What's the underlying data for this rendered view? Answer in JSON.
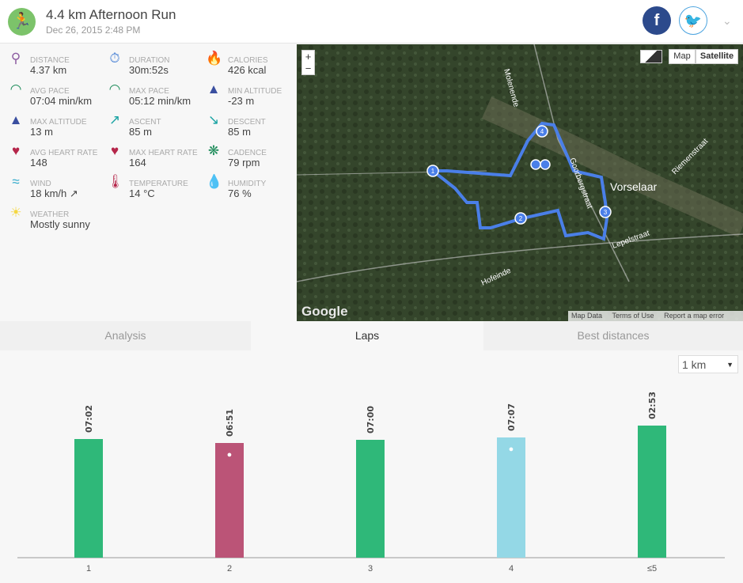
{
  "header": {
    "title": "4.4 km Afternoon Run",
    "date": "Dec 26, 2015 2:48 PM",
    "facebook": "f",
    "twitter": "🐦",
    "menu": "⌄",
    "logo_icon": "running-figure"
  },
  "stats": [
    {
      "label": "DISTANCE",
      "value": "4.37 km",
      "icon": "distance-icon",
      "glyph": "⚲",
      "color": "#8e5ea2"
    },
    {
      "label": "DURATION",
      "value": "30m:52s",
      "icon": "stopwatch-icon",
      "glyph": "⏱",
      "color": "#5b8ed8"
    },
    {
      "label": "CALORIES",
      "value": "426 kcal",
      "icon": "flame-icon",
      "glyph": "🔥",
      "color": "#f26b3a"
    },
    {
      "label": "AVG PACE",
      "value": "07:04 min/km",
      "icon": "speedometer-icon",
      "glyph": "◠",
      "color": "#1e8c5a"
    },
    {
      "label": "MAX PACE",
      "value": "05:12 min/km",
      "icon": "speedometer-icon",
      "glyph": "◠",
      "color": "#1e8c5a"
    },
    {
      "label": "MIN ALTITUDE",
      "value": "-23 m",
      "icon": "mountain-icon",
      "glyph": "▲",
      "color": "#3a4fa0"
    },
    {
      "label": "MAX ALTITUDE",
      "value": "13 m",
      "icon": "mountain-icon",
      "glyph": "▲",
      "color": "#3a4fa0"
    },
    {
      "label": "ASCENT",
      "value": "85 m",
      "icon": "ascent-icon",
      "glyph": "↗",
      "color": "#1aa3a3"
    },
    {
      "label": "DESCENT",
      "value": "85 m",
      "icon": "descent-icon",
      "glyph": "↘",
      "color": "#1aa3a3"
    },
    {
      "label": "AVG HEART RATE",
      "value": "148",
      "icon": "heart-icon",
      "glyph": "♥",
      "color": "#b5264a"
    },
    {
      "label": "MAX HEART RATE",
      "value": "164",
      "icon": "heart-icon",
      "glyph": "♥",
      "color": "#b5264a"
    },
    {
      "label": "CADENCE",
      "value": "79 rpm",
      "icon": "cadence-icon",
      "glyph": "❋",
      "color": "#1e8c5a"
    },
    {
      "label": "WIND",
      "value": "18 km/h ↗",
      "icon": "wind-icon",
      "glyph": "≈",
      "color": "#2aa7c9"
    },
    {
      "label": "TEMPERATURE",
      "value": "14 °C",
      "icon": "thermometer-icon",
      "glyph": "🌡",
      "color": "#b5264a"
    },
    {
      "label": "HUMIDITY",
      "value": "76 %",
      "icon": "humidity-icon",
      "glyph": "💧",
      "color": "#8fb7f0"
    },
    {
      "label": "WEATHER",
      "value": "Mostly sunny",
      "icon": "sun-icon",
      "glyph": "☀",
      "color": "#f5d742"
    }
  ],
  "map": {
    "zoom_in": "+",
    "zoom_out": "−",
    "map_btn": "Map",
    "satellite_btn": "Satellite",
    "town": "Vorselaar",
    "streets": [
      "Molenende",
      "Goorbergstraat",
      "Lepelstraat",
      "Hofeinde",
      "Riemenstraat"
    ],
    "google": "Google",
    "footer": [
      "Map Data",
      "Terms of Use",
      "Report a map error"
    ],
    "markers": [
      "1",
      "2",
      "3",
      "4"
    ]
  },
  "tabs": [
    "Analysis",
    "Laps",
    "Best distances"
  ],
  "active_tab": "Laps",
  "lap_select": "1 km",
  "chart_data": {
    "type": "bar",
    "categories": [
      "1",
      "2",
      "3",
      "4",
      "≤5"
    ],
    "labels": [
      "07:02",
      "06:51",
      "07:00",
      "07:07",
      "02:53"
    ],
    "values": [
      150,
      145,
      149,
      152,
      167
    ],
    "ylim": [
      0,
      245
    ],
    "colors": [
      "#2fb879",
      "#bb5477",
      "#2fb879",
      "#94d8e6",
      "#2fb879"
    ],
    "badges": [
      "",
      "rabbit-icon",
      "",
      "turtle-icon",
      ""
    ]
  }
}
